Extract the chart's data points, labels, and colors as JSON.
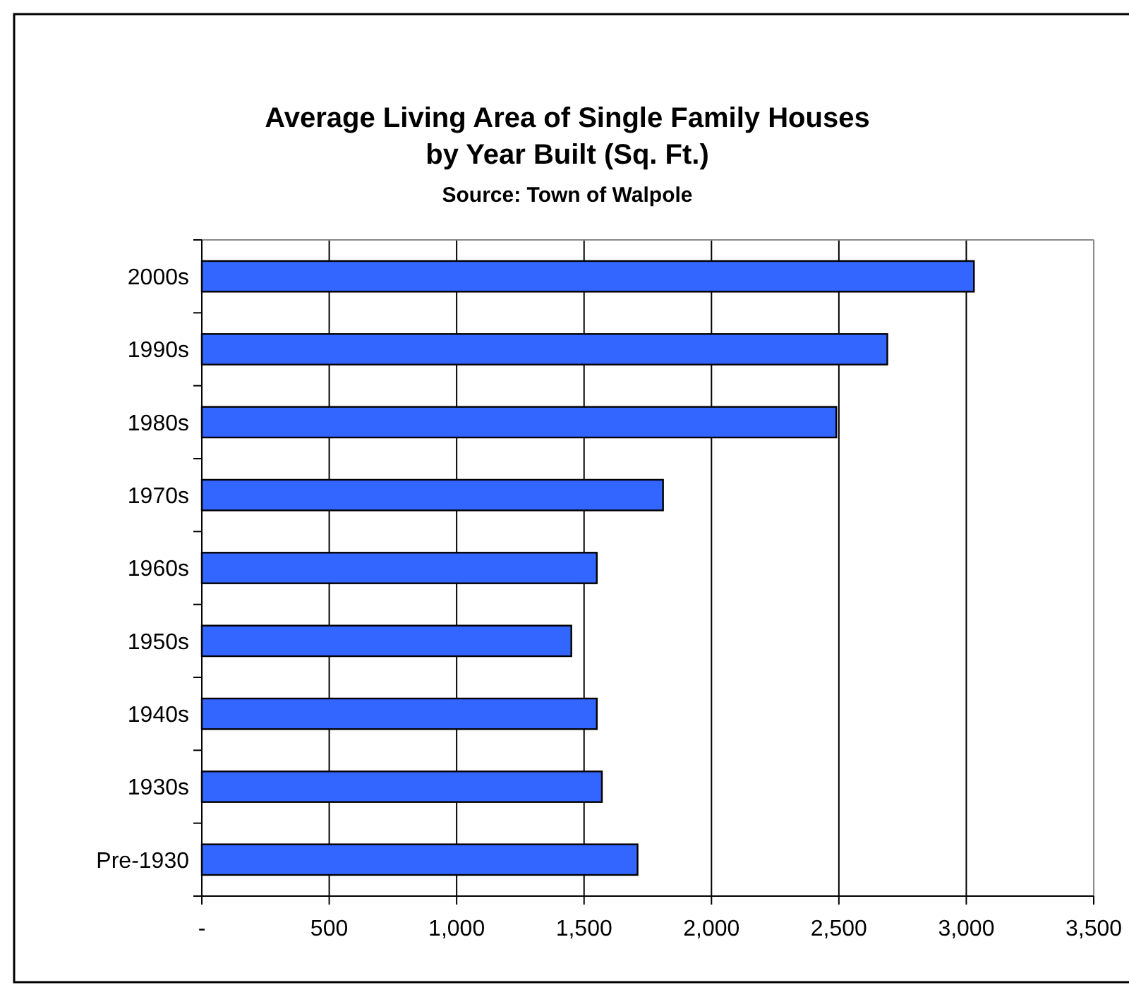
{
  "chart_data": {
    "type": "bar",
    "orientation": "horizontal",
    "title": "Average Living Area of Single Family Houses\nby Year Built (Sq. Ft.)",
    "subtitle": "Source: Town of Walpole",
    "categories": [
      "2000s",
      "1990s",
      "1980s",
      "1970s",
      "1960s",
      "1950s",
      "1940s",
      "1930s",
      "Pre-1930"
    ],
    "values": [
      3030,
      2690,
      2490,
      1810,
      1550,
      1450,
      1550,
      1570,
      1710
    ],
    "color": "#3366ff",
    "xlim": [
      0,
      3500
    ],
    "xticks": [
      {
        "value": 0,
        "label": "-"
      },
      {
        "value": 500,
        "label": "500"
      },
      {
        "value": 1000,
        "label": "1,000"
      },
      {
        "value": 1500,
        "label": "1,500"
      },
      {
        "value": 2000,
        "label": "2,000"
      },
      {
        "value": 2500,
        "label": "2,500"
      },
      {
        "value": 3000,
        "label": "3,000"
      },
      {
        "value": 3500,
        "label": "3,500"
      }
    ],
    "grid": "x"
  }
}
